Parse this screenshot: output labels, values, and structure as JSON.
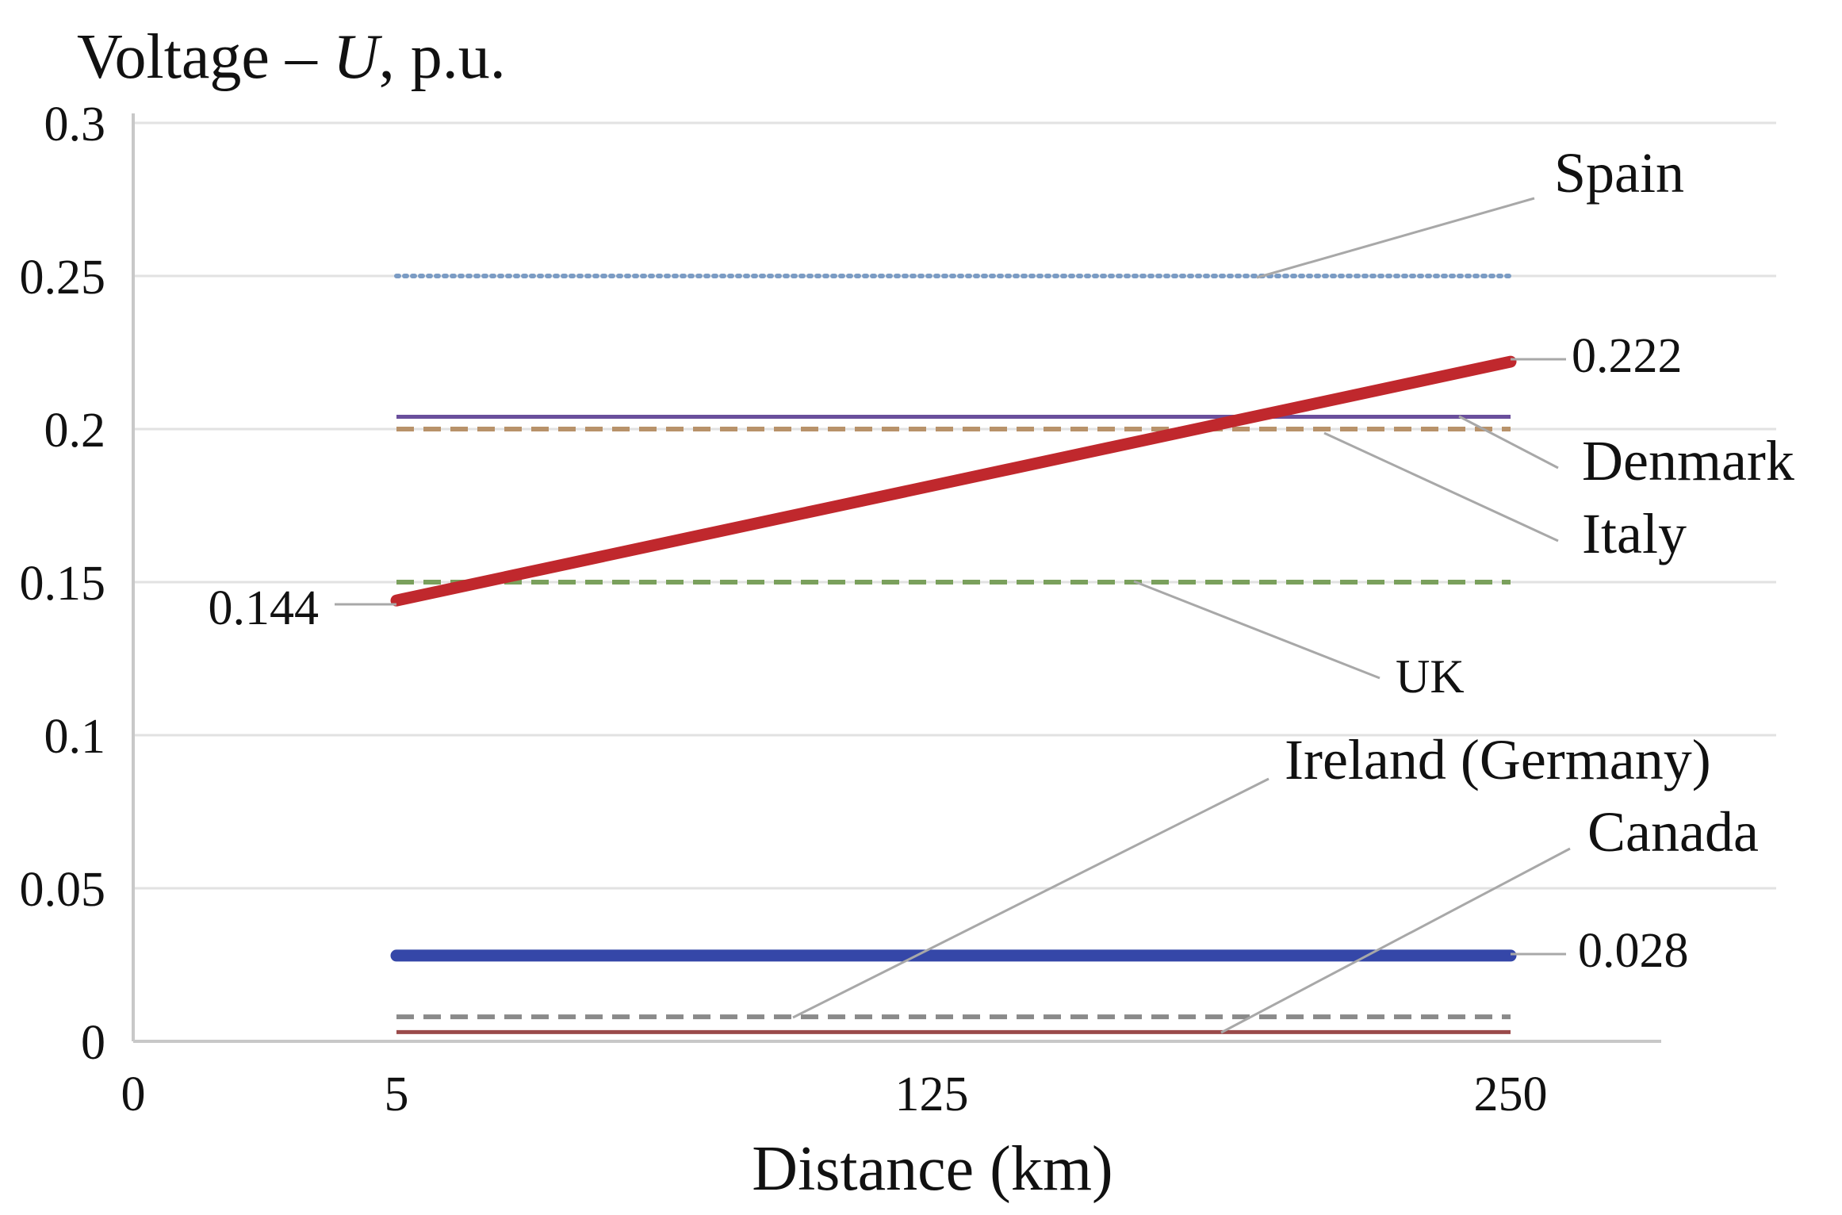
{
  "chart_data": {
    "type": "line",
    "title": "",
    "ylabel": {
      "prefix": "Voltage – ",
      "variable": "U",
      "suffix": ", p.u."
    },
    "xlabel": "Distance (km)",
    "ylim": [
      0,
      0.3
    ],
    "yticks": [
      "0",
      "0.05",
      "0.1",
      "0.15",
      "0.2",
      "0.25",
      "0.3"
    ],
    "xticks": [
      "0",
      "5",
      "125",
      "250"
    ],
    "grid": true,
    "series": [
      {
        "name": "Spain",
        "x": [
          5,
          250
        ],
        "y": [
          0.25,
          0.25
        ],
        "color": "#7b9cc4",
        "style": "dotted"
      },
      {
        "name": "Denmark",
        "x": [
          5,
          250
        ],
        "y": [
          0.204,
          0.204
        ],
        "color": "#6a4f9c",
        "style": "solid"
      },
      {
        "name": "Italy",
        "x": [
          5,
          250
        ],
        "y": [
          0.2,
          0.2
        ],
        "color": "#b8926a",
        "style": "dashed"
      },
      {
        "name": "UK",
        "x": [
          5,
          250
        ],
        "y": [
          0.15,
          0.15
        ],
        "color": "#7aa05c",
        "style": "dashed"
      },
      {
        "name": "Ireland (Germany)",
        "x": [
          5,
          250
        ],
        "y": [
          0.008,
          0.008
        ],
        "color": "#8a8a8a",
        "style": "dashed"
      },
      {
        "name": "Canada",
        "x": [
          5,
          250
        ],
        "y": [
          0.003,
          0.003
        ],
        "color": "#9a4a4a",
        "style": "solid"
      },
      {
        "name": "",
        "x": [
          5,
          250
        ],
        "y": [
          0.144,
          0.222
        ],
        "color": "#c0282d",
        "style": "thick"
      },
      {
        "name": "",
        "x": [
          5,
          250
        ],
        "y": [
          0.028,
          0.028
        ],
        "color": "#3547a8",
        "style": "thick"
      }
    ],
    "annotations": [
      {
        "text": "Spain",
        "series": "Spain"
      },
      {
        "text": "Denmark",
        "series": "Denmark"
      },
      {
        "text": "Italy",
        "series": "Italy"
      },
      {
        "text": "UK",
        "series": "UK"
      },
      {
        "text": "Ireland (Germany)",
        "series": "Ireland (Germany)"
      },
      {
        "text": "Canada",
        "series": "Canada"
      },
      {
        "text": "0.144",
        "value": 0.144
      },
      {
        "text": "0.222",
        "value": 0.222
      },
      {
        "text": "0.028",
        "value": 0.028
      }
    ]
  }
}
